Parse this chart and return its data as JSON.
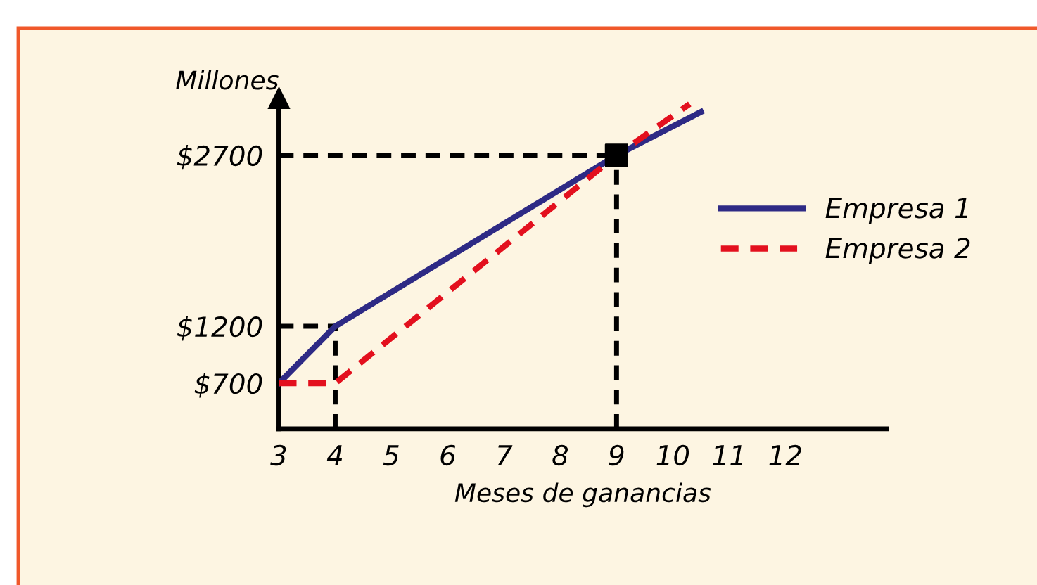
{
  "chart_data": {
    "type": "line",
    "xlabel": "Meses de ganancias",
    "ylabel": "Millones",
    "xlim": [
      3,
      13.8
    ],
    "ylim": [
      300,
      3200
    ],
    "xticks": [
      3,
      4,
      5,
      6,
      7,
      8,
      9,
      10,
      11,
      12
    ],
    "yticks": [
      {
        "value": 700,
        "label": "$700"
      },
      {
        "value": 1200,
        "label": "$1200"
      },
      {
        "value": 2700,
        "label": "$2700"
      }
    ],
    "series": [
      {
        "name": "Empresa 1",
        "color": "#2e2a85",
        "line_style": "solid",
        "x": [
          3,
          4,
          9,
          10.5
        ],
        "values": [
          700,
          1200,
          2700,
          3080
        ]
      },
      {
        "name": "Empresa 2",
        "color": "#e3101e",
        "line_style": "dashed",
        "x": [
          3,
          4,
          9,
          10.3
        ],
        "values": [
          700,
          700,
          2700,
          3150
        ]
      },
      {
        "type": "scatter",
        "color": "#000000",
        "marker": "square",
        "x": [
          9
        ],
        "values": [
          2700
        ]
      }
    ],
    "ref_lines": [
      {
        "axis": "x",
        "value": 4,
        "color": "#000000",
        "line_style": "dashed"
      },
      {
        "axis": "x",
        "value": 9,
        "color": "#000000",
        "line_style": "dashed"
      },
      {
        "axis": "y",
        "value": 1200,
        "color": "#000000",
        "line_style": "dashed"
      },
      {
        "axis": "y",
        "value": 2700,
        "color": "#000000",
        "line_style": "dashed"
      }
    ],
    "grid": false,
    "legend": "right"
  }
}
